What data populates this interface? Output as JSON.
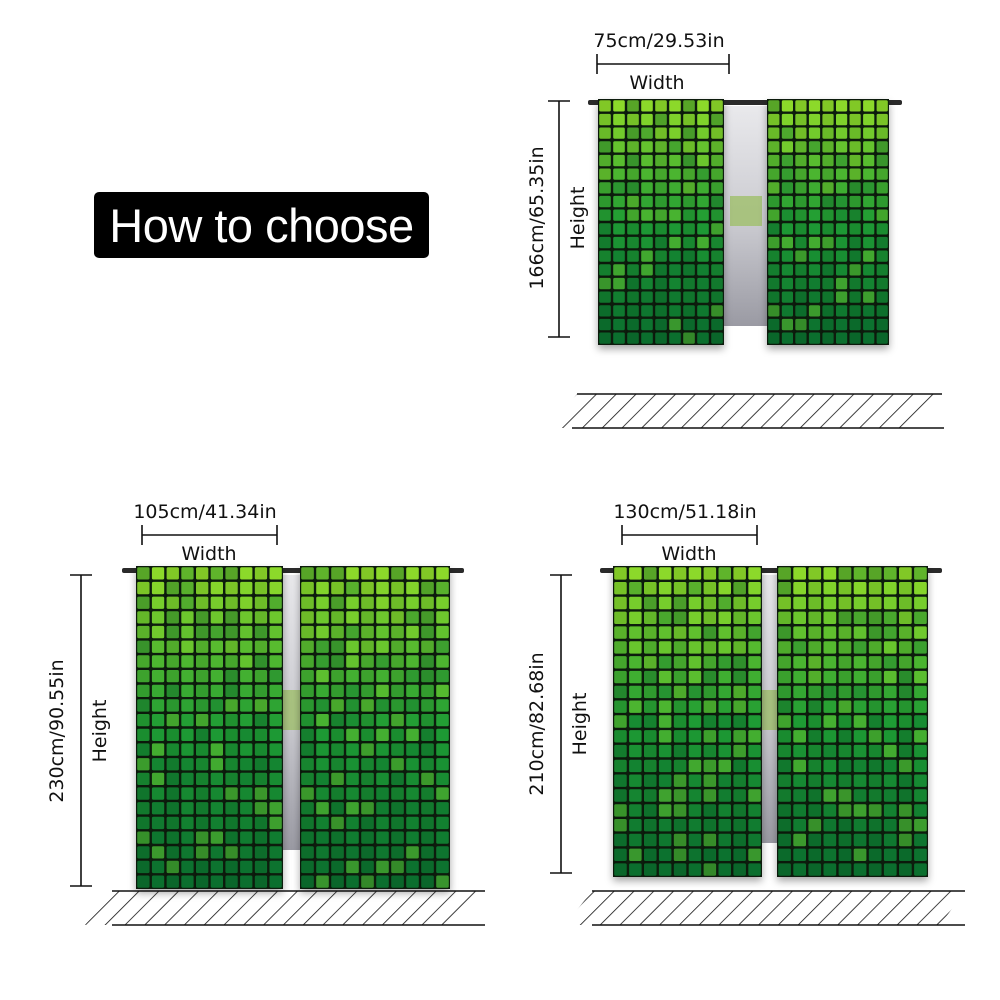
{
  "title": "How to choose",
  "colors": {
    "tile_dark": "#0b6f2e",
    "tile_mid": "#1e9b34",
    "tile_light": "#8cd92a",
    "grout": "#0a1a0c",
    "rod": "#2a2a2a"
  },
  "panels": [
    {
      "width_text": "75cm/29.53in",
      "width_label": "Width",
      "height_text": "166cm/65.35in",
      "height_label": "Height"
    },
    {
      "width_text": "105cm/41.34in",
      "width_label": "Width",
      "height_text": "230cm/90.55in",
      "height_label": "Height"
    },
    {
      "width_text": "130cm/51.18in",
      "width_label": "Width",
      "height_text": "210cm/82.68in",
      "height_label": "Height"
    }
  ]
}
